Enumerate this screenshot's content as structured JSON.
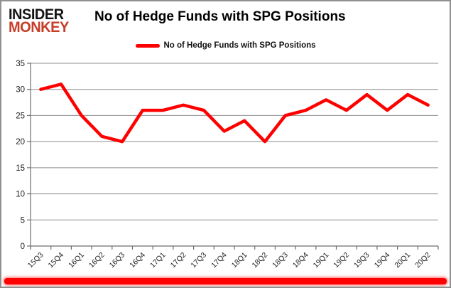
{
  "brand": {
    "line1": "INSIDER",
    "line2": "MONKEY",
    "monkey_color": "#c63d28",
    "insider_color": "#141414"
  },
  "header": {
    "title": "No of Hedge Funds with SPG Positions"
  },
  "legend": {
    "label": "No of Hedge Funds with SPG Positions",
    "color": "#ff0000"
  },
  "chart_data": {
    "type": "line",
    "title": "No of Hedge Funds with SPG Positions",
    "categories": [
      "15Q3",
      "15Q4",
      "16Q1",
      "16Q2",
      "16Q3",
      "16Q4",
      "17Q1",
      "17Q2",
      "17Q3",
      "17Q4",
      "18Q1",
      "18Q2",
      "18Q3",
      "18Q4",
      "19Q1",
      "19Q2",
      "19Q3",
      "19Q4",
      "20Q1",
      "20Q2"
    ],
    "series": [
      {
        "name": "No of Hedge Funds with SPG Positions",
        "color": "#ff0000",
        "values": [
          30,
          31,
          25,
          21,
          20,
          26,
          26,
          27,
          26,
          22,
          24,
          20,
          25,
          26,
          28,
          26,
          29,
          26,
          29,
          27
        ]
      }
    ],
    "xlabel": "",
    "ylabel": "",
    "ylim": [
      0,
      35
    ],
    "yticks": [
      0,
      5,
      10,
      15,
      20,
      25,
      30,
      35
    ],
    "grid": true,
    "legend_position": "top"
  },
  "colors": {
    "line": "#ff0000",
    "grid": "#8d8d8d",
    "axis": "#6e6e6e",
    "tick_text": "#1f1f1f",
    "bottom_bar": "#fe0000",
    "border": "#909090"
  }
}
